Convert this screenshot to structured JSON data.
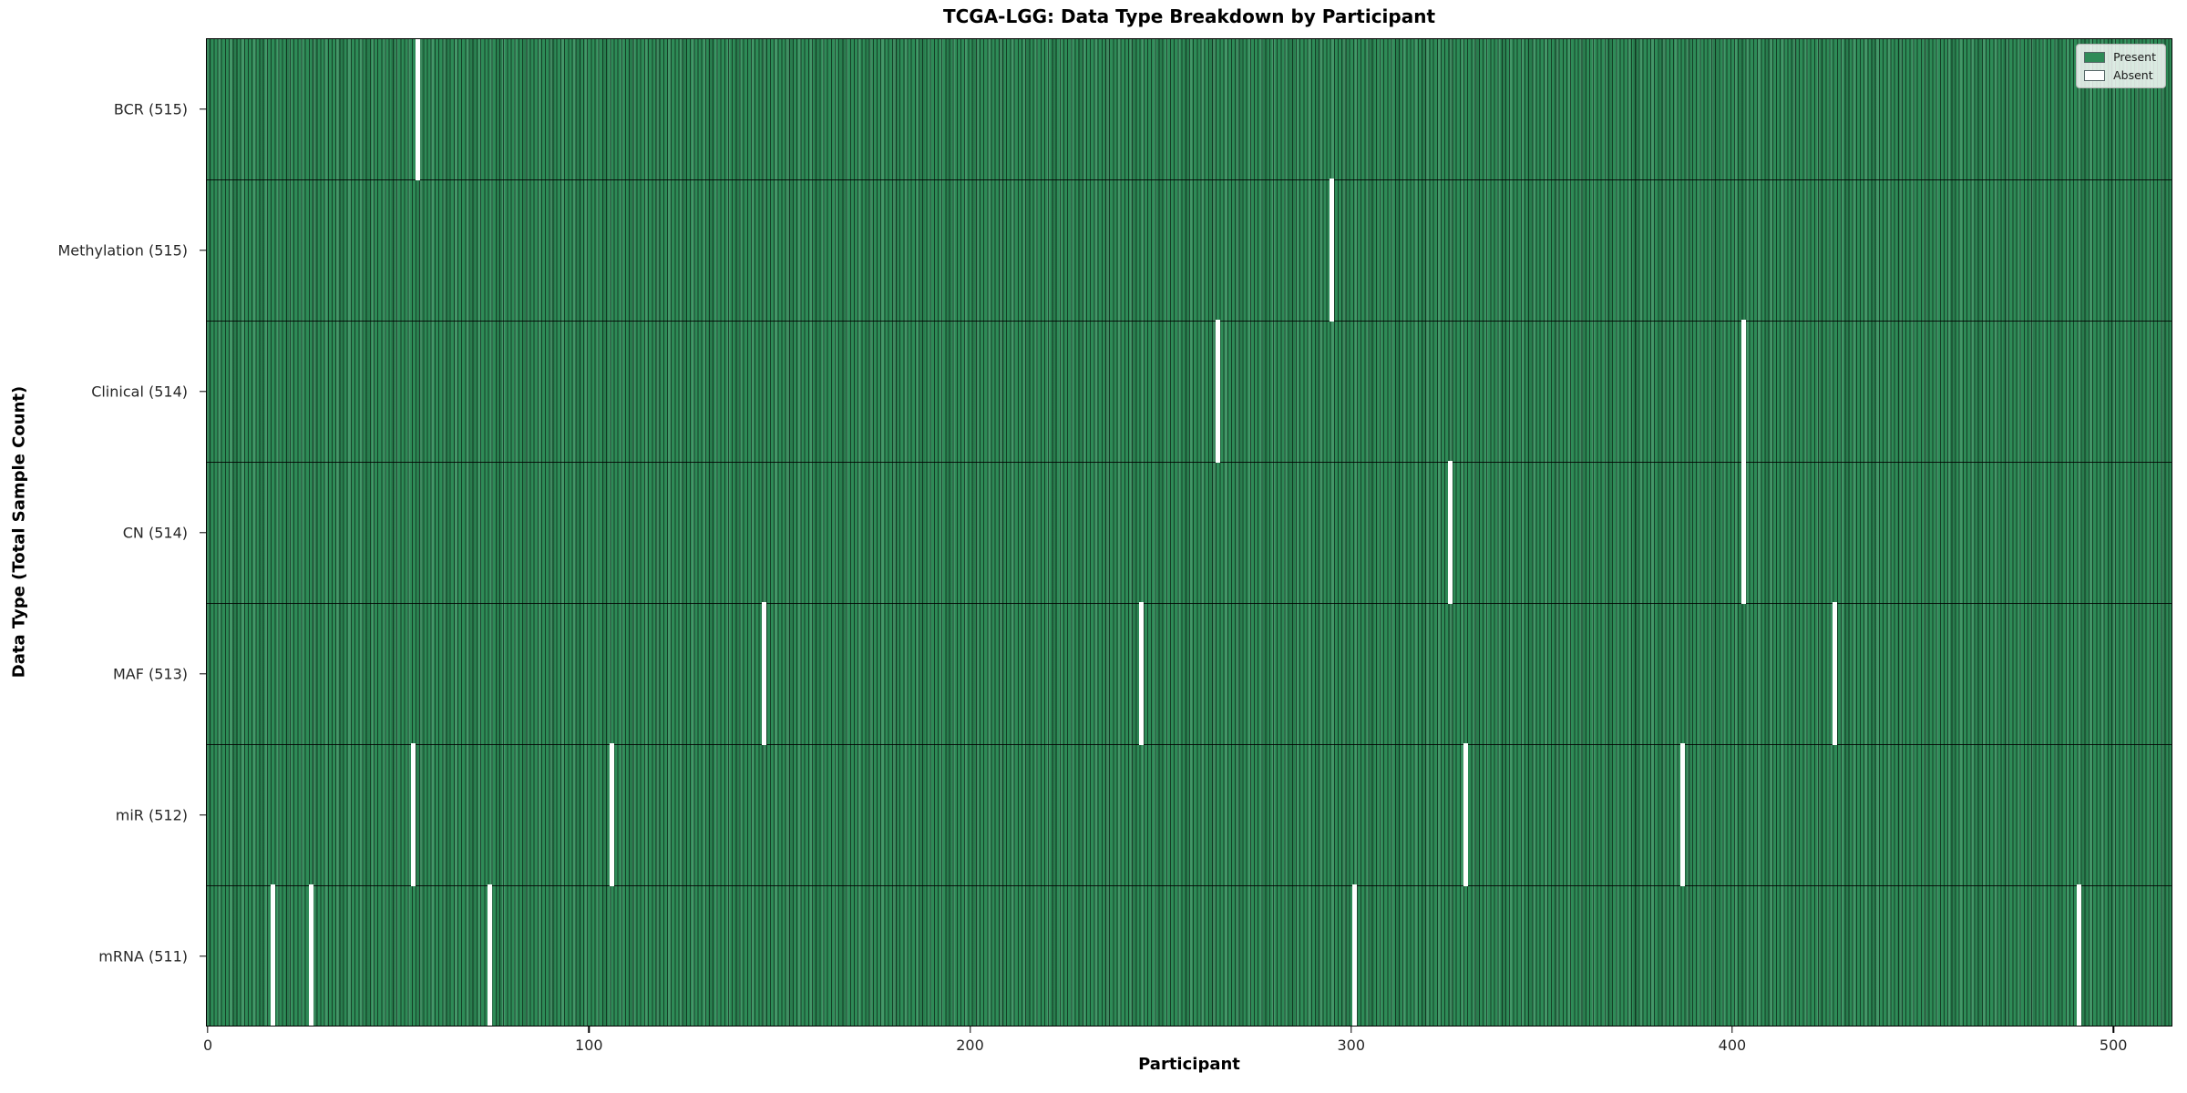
{
  "chart_data": {
    "type": "heatmap",
    "title": "TCGA-LGG: Data Type Breakdown by Participant",
    "xlabel": "Participant",
    "ylabel": "Data Type (Total Sample Count)",
    "x_ticks": [
      0,
      100,
      200,
      300,
      400,
      500
    ],
    "n_participants": 516,
    "present_color": "#2e8b57",
    "absent_color": "#ffffff",
    "bar_edge_color": "#14402a",
    "legend": [
      {
        "label": "Present",
        "color": "#2e8b57"
      },
      {
        "label": "Absent",
        "color": "#ffffff"
      }
    ],
    "legend_position": "upper right",
    "rows": [
      {
        "label": "BCR (515)",
        "data_type": "BCR",
        "total": 515,
        "absent_participants": [
          55
        ]
      },
      {
        "label": "Methylation (515)",
        "data_type": "Methylation",
        "total": 515,
        "absent_participants": [
          295
        ]
      },
      {
        "label": "Clinical (514)",
        "data_type": "Clinical",
        "total": 514,
        "absent_participants": [
          265,
          403
        ]
      },
      {
        "label": "CN (514)",
        "data_type": "CN",
        "total": 514,
        "absent_participants": [
          326,
          403
        ]
      },
      {
        "label": "MAF (513)",
        "data_type": "MAF",
        "total": 513,
        "absent_participants": [
          146,
          245,
          427
        ]
      },
      {
        "label": "miR (512)",
        "data_type": "miR",
        "total": 512,
        "absent_participants": [
          54,
          106,
          330,
          387
        ]
      },
      {
        "label": "mRNA (511)",
        "data_type": "mRNA",
        "total": 511,
        "absent_participants": [
          17,
          27,
          74,
          301,
          491
        ]
      }
    ]
  }
}
